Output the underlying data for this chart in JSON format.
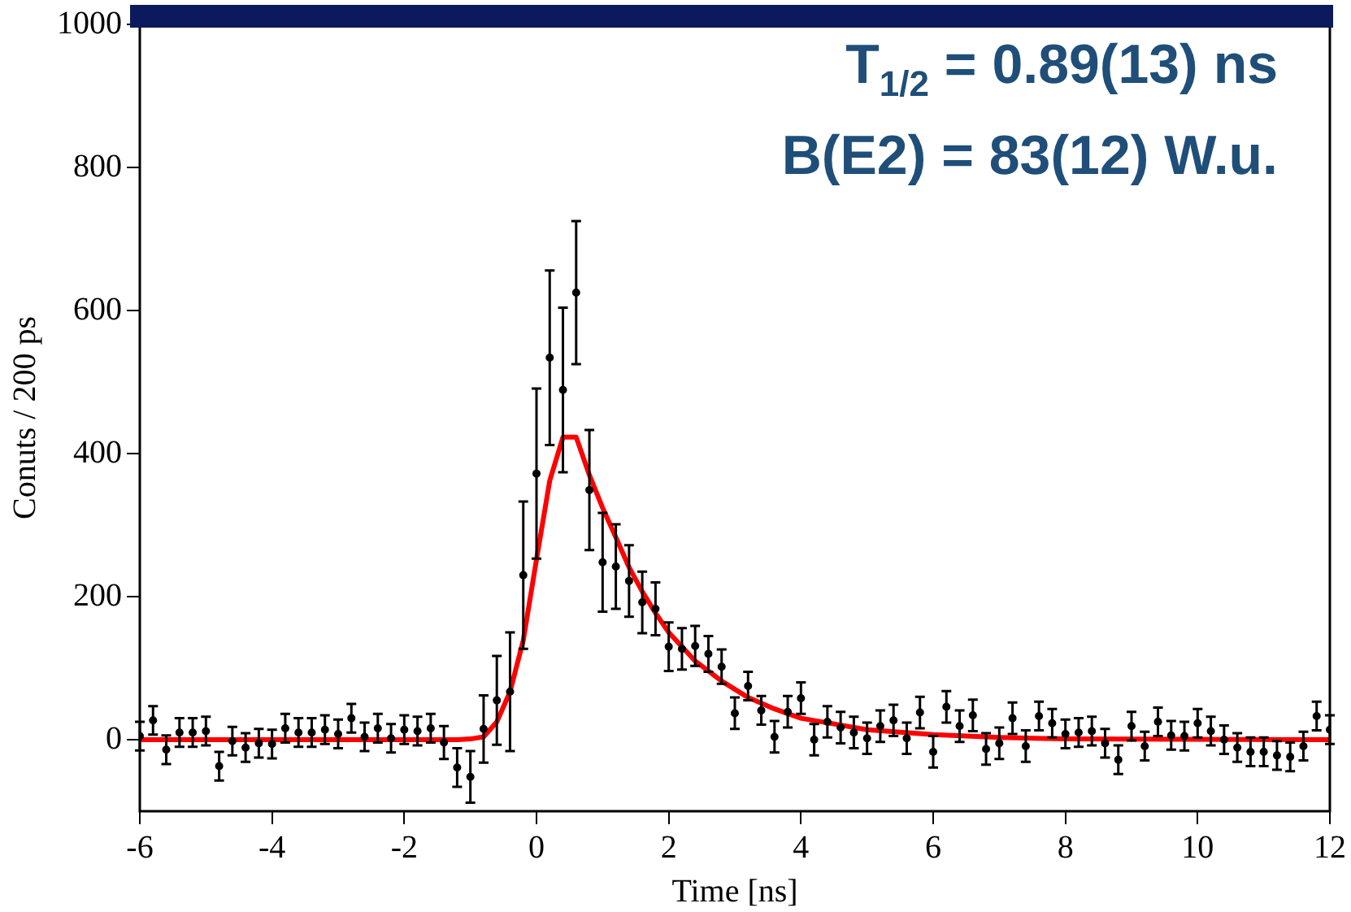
{
  "chart_data": {
    "type": "scatter",
    "xlabel": "Time [ns]",
    "ylabel": "Conuts / 200 ps",
    "annotations": [
      "T$_{1/2}$ = 0.89(13) ns",
      "B(E2) = 83(12) W.u."
    ],
    "xlim": [
      -6,
      12
    ],
    "xticks": [
      -6,
      -4,
      -2,
      0,
      2,
      4,
      6,
      8,
      10,
      12
    ],
    "ylim": [
      -100,
      1000
    ],
    "yticks": [
      0,
      200,
      400,
      600,
      800,
      1000
    ],
    "grid": false,
    "legend": false,
    "series": [
      {
        "color": "#000000",
        "marker": "circle",
        "x": [
          -6.0,
          -5.8,
          -5.6,
          -5.4,
          -5.2,
          -5.0,
          -4.8,
          -4.6,
          -4.4,
          -4.2,
          -4.0,
          -3.8,
          -3.6,
          -3.4,
          -3.2,
          -3.0,
          -2.8,
          -2.6,
          -2.4,
          -2.2,
          -2.0,
          -1.8,
          -1.6,
          -1.4,
          -1.2,
          -1.0,
          -0.8,
          -0.6,
          -0.4,
          -0.2,
          0.0,
          0.2,
          0.4,
          0.6,
          0.8,
          1.0,
          1.2,
          1.4,
          1.6,
          1.8,
          2.0,
          2.2,
          2.4,
          2.6,
          2.8,
          3.0,
          3.2,
          3.4,
          3.6,
          3.8,
          4.0,
          4.2,
          4.4,
          4.6,
          4.8,
          5.0,
          5.2,
          5.4,
          5.6,
          5.8,
          6.0,
          6.2,
          6.4,
          6.6,
          6.8,
          7.0,
          7.2,
          7.4,
          7.6,
          7.8,
          8.0,
          8.2,
          8.4,
          8.6,
          8.8,
          9.0,
          9.2,
          9.4,
          9.6,
          9.8,
          10.0,
          10.2,
          10.4,
          10.6,
          10.8,
          11.0,
          11.2,
          11.4,
          11.6,
          11.8,
          12.0
        ],
        "values": [
          5,
          27,
          -14,
          10,
          10,
          12,
          -37,
          -2,
          -11,
          -5,
          -6,
          16,
          10,
          10,
          14,
          8,
          30,
          4,
          16,
          2,
          14,
          12,
          16,
          -4,
          -39,
          -52,
          15,
          55,
          67,
          230,
          372,
          534,
          489,
          625,
          349,
          248,
          242,
          222,
          192,
          183,
          130,
          127,
          131,
          120,
          102,
          37,
          75,
          41,
          4,
          39,
          58,
          0,
          25,
          17,
          10,
          2,
          19,
          27,
          2,
          38,
          -17,
          46,
          19,
          34,
          -13,
          -5,
          30,
          -9,
          33,
          23,
          8,
          10,
          12,
          -5,
          -28,
          19,
          -9,
          25,
          6,
          5,
          23,
          12,
          0,
          -11,
          -17,
          -17,
          -22,
          -24,
          -9,
          33,
          14
        ],
        "errors": [
          20,
          20,
          20,
          20,
          20,
          20,
          20,
          20,
          20,
          20,
          20,
          20,
          20,
          20,
          20,
          20,
          20,
          20,
          20,
          20,
          20,
          20,
          20,
          23,
          27,
          36,
          47,
          62,
          83,
          103,
          119,
          122,
          115,
          100,
          84,
          69,
          59,
          50,
          43,
          37,
          34,
          29,
          28,
          25,
          24,
          22,
          20,
          20,
          22,
          22,
          22,
          22,
          22,
          22,
          22,
          22,
          22,
          22,
          22,
          22,
          22,
          22,
          22,
          22,
          22,
          22,
          22,
          22,
          20,
          20,
          20,
          20,
          20,
          20,
          20,
          20,
          20,
          20,
          20,
          20,
          20,
          20,
          20,
          20,
          20,
          20,
          20,
          20,
          20,
          20,
          20
        ]
      },
      {
        "type": "line",
        "color": "#ff0000",
        "marker": "none",
        "x": [
          -6,
          -1.2,
          -1,
          -0.8,
          -0.6,
          -0.4,
          -0.2,
          0,
          0.2,
          0.4,
          0.6,
          0.8,
          1,
          1.2,
          1.4,
          1.6,
          1.8,
          2,
          2.4,
          2.8,
          3.2,
          3.6,
          4,
          4.5,
          5,
          6,
          7,
          8,
          12
        ],
        "values": [
          0,
          0,
          1,
          4,
          25,
          67,
          139,
          252,
          362,
          423,
          423,
          370,
          324,
          283,
          241,
          207,
          177,
          150,
          110,
          82,
          59,
          43,
          30,
          22,
          14,
          7,
          3,
          1,
          0
        ]
      }
    ]
  }
}
